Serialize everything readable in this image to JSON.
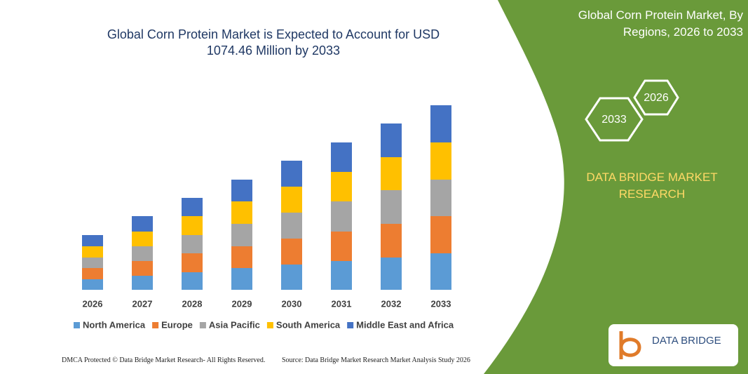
{
  "chart_data": {
    "type": "stacked-bar",
    "title": "Global Corn Protein Market is Expected to Account for USD 1074.46 Million by 2033",
    "categories": [
      "2026",
      "2027",
      "2028",
      "2029",
      "2030",
      "2031",
      "2032",
      "2033"
    ],
    "series": [
      {
        "name": "North America",
        "color": "#5b9bd5",
        "values": [
          15,
          20,
          25,
          31,
          36,
          41,
          46,
          52
        ]
      },
      {
        "name": "Europe",
        "color": "#ed7d31",
        "values": [
          16,
          21,
          27,
          31,
          37,
          42,
          48,
          53
        ]
      },
      {
        "name": "Asia Pacific",
        "color": "#a5a5a5",
        "values": [
          15,
          21,
          26,
          32,
          37,
          43,
          48,
          52
        ]
      },
      {
        "name": "South America",
        "color": "#ffc000",
        "values": [
          16,
          21,
          27,
          32,
          37,
          42,
          47,
          53
        ]
      },
      {
        "name": "Middle East and Africa",
        "color": "#4472c4",
        "values": [
          16,
          22,
          26,
          31,
          37,
          42,
          48,
          53
        ]
      }
    ],
    "ylim": [
      0,
      280
    ]
  },
  "side": {
    "title": "Global Corn Protein Market, By Regions, 2026 to 2033",
    "badge_start": "2026",
    "badge_end": "2033",
    "brand": "DATA BRIDGE MARKET RESEARCH",
    "logo": "DATA BRIDGE"
  },
  "footer": {
    "left": "DMCA Protected © Data Bridge Market Research- All Rights Reserved.",
    "right": "Source: Data Bridge Market Research Market Analysis Study 2026"
  }
}
